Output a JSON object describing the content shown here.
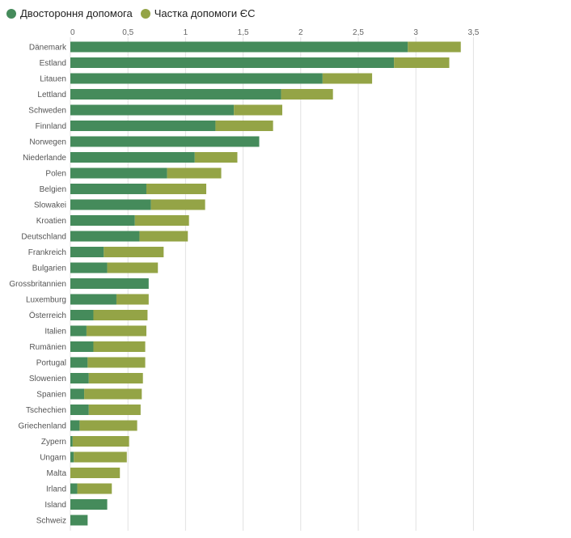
{
  "legend": {
    "position": "top-left",
    "items": [
      {
        "label": "Двостороння допомога",
        "color": "#458b5b"
      },
      {
        "label": "Частка допомоги ЄС",
        "color": "#94a446"
      }
    ]
  },
  "chart_data": {
    "type": "bar",
    "orientation": "horizontal",
    "stacked": true,
    "title": "",
    "xlabel": "",
    "ylabel": "",
    "xlim": [
      0,
      3.5
    ],
    "x_ticks": [
      "0",
      "0,5",
      "1",
      "1,5",
      "2",
      "2,5",
      "3",
      "3,5"
    ],
    "grid": true,
    "categories": [
      "Dänemark",
      "Estland",
      "Litauen",
      "Lettland",
      "Schweden",
      "Finnland",
      "Norwegen",
      "Niederlande",
      "Polen",
      "Belgien",
      "Slowakei",
      "Kroatien",
      "Deutschland",
      "Frankreich",
      "Bulgarien",
      "Grossbritannien",
      "Luxemburg",
      "Österreich",
      "Italien",
      "Rumänien",
      "Portugal",
      "Slowenien",
      "Spanien",
      "Tschechien",
      "Griechenland",
      "Zypern",
      "Ungarn",
      "Malta",
      "Irland",
      "Island",
      "Schweiz"
    ],
    "series": [
      {
        "name": "Двостороння допомога",
        "color": "#458b5b",
        "values": [
          2.93,
          2.81,
          2.19,
          1.83,
          1.42,
          1.26,
          1.64,
          1.08,
          0.84,
          0.66,
          0.7,
          0.56,
          0.6,
          0.29,
          0.32,
          0.68,
          0.4,
          0.2,
          0.14,
          0.2,
          0.15,
          0.16,
          0.12,
          0.16,
          0.08,
          0.02,
          0.03,
          0.0,
          0.06,
          0.32,
          0.15
        ]
      },
      {
        "name": "Частка допомоги ЄС",
        "color": "#94a446",
        "values": [
          0.46,
          0.48,
          0.43,
          0.45,
          0.42,
          0.5,
          0.0,
          0.37,
          0.47,
          0.52,
          0.47,
          0.47,
          0.42,
          0.52,
          0.44,
          0.0,
          0.28,
          0.47,
          0.52,
          0.45,
          0.5,
          0.47,
          0.5,
          0.45,
          0.5,
          0.49,
          0.46,
          0.43,
          0.3,
          0.0,
          0.0
        ]
      }
    ]
  }
}
